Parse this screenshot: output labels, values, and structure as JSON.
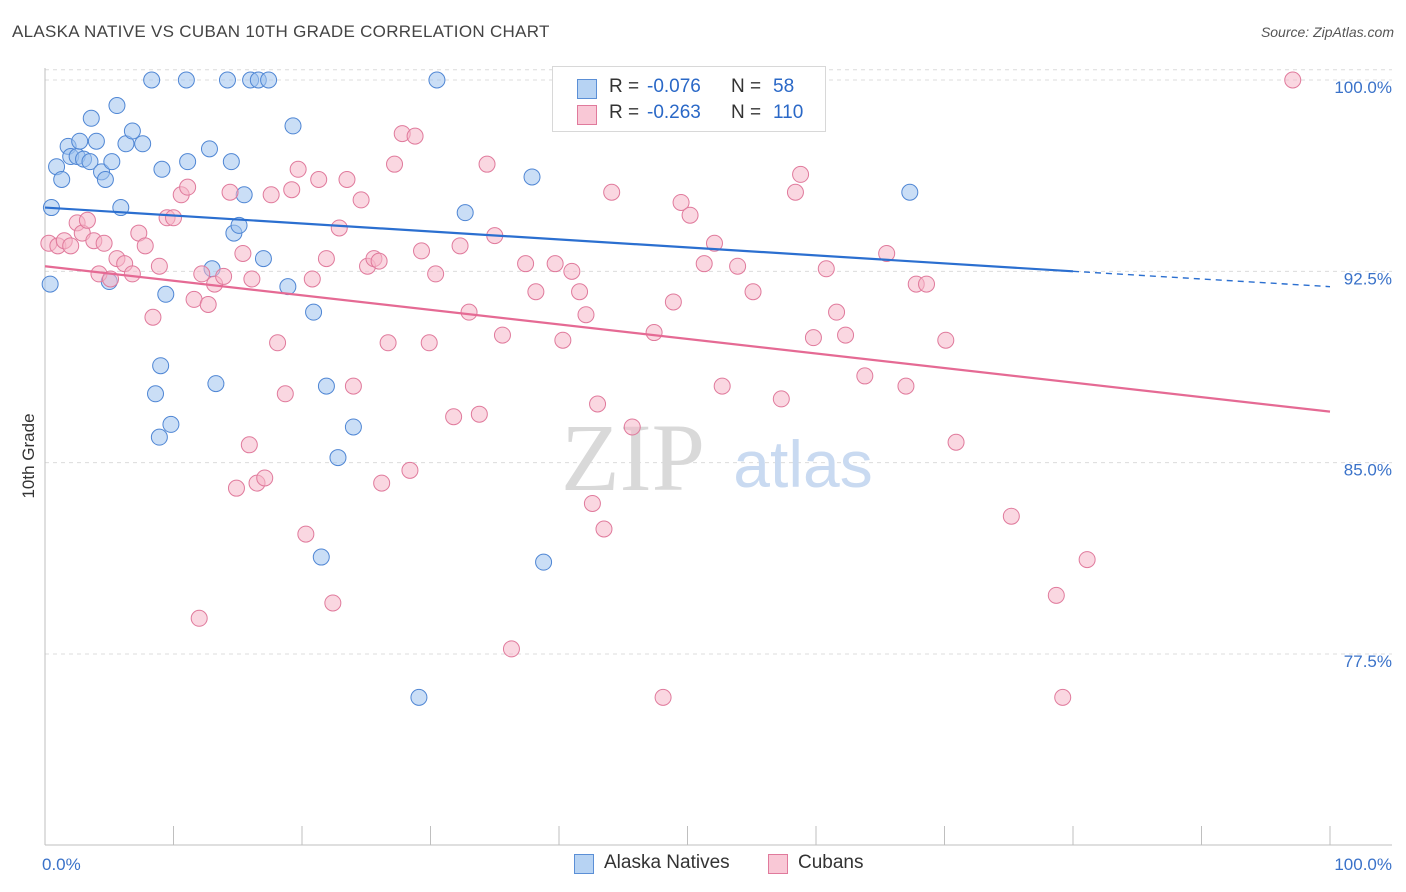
{
  "title": "ALASKA NATIVE VS CUBAN 10TH GRADE CORRELATION CHART",
  "source": "Source: ZipAtlas.com",
  "watermark": {
    "zip": "ZIP",
    "atlas": "atlas"
  },
  "legend": {
    "rows": [
      {
        "r_label": "R =",
        "r_value": "-0.076",
        "n_label": "N =",
        "n_value": "58",
        "color": "#9ec3ee",
        "edge": "#5b8fd6"
      },
      {
        "r_label": "R =",
        "r_value": "-0.263",
        "n_label": "N =",
        "n_value": "110",
        "color": "#f6b6c9",
        "edge": "#e07a9c"
      }
    ]
  },
  "chart_data": {
    "type": "scatter",
    "title": "ALASKA NATIVE VS CUBAN 10TH GRADE CORRELATION CHART",
    "xlabel": "",
    "ylabel": "10th Grade",
    "xlim": [
      0,
      100
    ],
    "ylim": [
      71,
      101
    ],
    "x_tick_labels": [
      "0.0%",
      "100.0%"
    ],
    "y_ticks": [
      77.5,
      85.0,
      92.5,
      100.0
    ],
    "y_tick_labels": [
      "77.5%",
      "85.0%",
      "92.5%",
      "100.0%"
    ],
    "grid": true,
    "legend_position": "top-center",
    "series": [
      {
        "name": "Alaska Natives",
        "color": "#9ec3ee",
        "edge": "#4f86d4",
        "trend_color": "#2b6fd0",
        "trend": {
          "x": [
            0,
            80
          ],
          "y": [
            95.0,
            92.5
          ],
          "dashed_to": [
            100,
            91.9
          ]
        },
        "points": [
          [
            0.4,
            92
          ],
          [
            0.5,
            95
          ],
          [
            0.9,
            96.6
          ],
          [
            1.3,
            96.1
          ],
          [
            1.8,
            97.4
          ],
          [
            2.0,
            97.0
          ],
          [
            2.5,
            97.0
          ],
          [
            2.7,
            97.6
          ],
          [
            3.0,
            96.9
          ],
          [
            3.5,
            96.8
          ],
          [
            3.6,
            98.5
          ],
          [
            4.0,
            97.6
          ],
          [
            4.4,
            96.4
          ],
          [
            4.7,
            96.1
          ],
          [
            5.2,
            96.8
          ],
          [
            5.6,
            99.0
          ],
          [
            5.9,
            95.0
          ],
          [
            6.3,
            97.5
          ],
          [
            6.8,
            98.0
          ],
          [
            7.6,
            97.5
          ],
          [
            8.3,
            100.0
          ],
          [
            8.6,
            87.7
          ],
          [
            8.9,
            86.0
          ],
          [
            9.1,
            96.5
          ],
          [
            9.4,
            91.6
          ],
          [
            9.8,
            86.5
          ],
          [
            11.0,
            100.0
          ],
          [
            11.1,
            96.8
          ],
          [
            12.8,
            97.3
          ],
          [
            13.0,
            92.6
          ],
          [
            13.3,
            88.1
          ],
          [
            14.2,
            100.0
          ],
          [
            14.5,
            96.8
          ],
          [
            14.7,
            94.0
          ],
          [
            15.1,
            94.3
          ],
          [
            15.5,
            95.5
          ],
          [
            16.0,
            100.0
          ],
          [
            16.6,
            100.0
          ],
          [
            17.0,
            93.0
          ],
          [
            17.4,
            100.0
          ],
          [
            18.9,
            91.9
          ],
          [
            19.3,
            98.2
          ],
          [
            20.9,
            90.9
          ],
          [
            21.5,
            81.3
          ],
          [
            21.9,
            88.0
          ],
          [
            22.8,
            85.2
          ],
          [
            24.0,
            86.4
          ],
          [
            29.1,
            75.8
          ],
          [
            30.5,
            100.0
          ],
          [
            32.7,
            94.8
          ],
          [
            37.9,
            96.2
          ],
          [
            38.8,
            81.1
          ],
          [
            41.5,
            100.0
          ],
          [
            42.5,
            100.0
          ],
          [
            45.2,
            100.0
          ],
          [
            67.3,
            95.6
          ],
          [
            5.0,
            92.1
          ],
          [
            9.0,
            88.8
          ]
        ]
      },
      {
        "name": "Cubans",
        "color": "#f6b6c9",
        "edge": "#e07a9c",
        "trend_color": "#e56a94",
        "trend": {
          "x": [
            0,
            100
          ],
          "y": [
            92.7,
            87.0
          ]
        },
        "points": [
          [
            0.3,
            93.6
          ],
          [
            1.0,
            93.5
          ],
          [
            1.5,
            93.7
          ],
          [
            2.0,
            93.5
          ],
          [
            2.5,
            94.4
          ],
          [
            2.9,
            94.0
          ],
          [
            3.3,
            94.5
          ],
          [
            3.8,
            93.7
          ],
          [
            4.2,
            92.4
          ],
          [
            4.6,
            93.6
          ],
          [
            5.1,
            92.2
          ],
          [
            5.6,
            93.0
          ],
          [
            6.2,
            92.8
          ],
          [
            6.8,
            92.4
          ],
          [
            7.3,
            94.0
          ],
          [
            7.8,
            93.5
          ],
          [
            8.4,
            90.7
          ],
          [
            8.9,
            92.7
          ],
          [
            9.5,
            94.6
          ],
          [
            10.0,
            94.6
          ],
          [
            10.6,
            95.5
          ],
          [
            11.1,
            95.8
          ],
          [
            11.6,
            91.4
          ],
          [
            12.2,
            92.4
          ],
          [
            12.7,
            91.2
          ],
          [
            13.2,
            92.0
          ],
          [
            13.9,
            92.3
          ],
          [
            14.4,
            95.6
          ],
          [
            14.9,
            84.0
          ],
          [
            15.4,
            93.2
          ],
          [
            15.9,
            85.7
          ],
          [
            16.5,
            84.2
          ],
          [
            17.1,
            84.4
          ],
          [
            17.6,
            95.5
          ],
          [
            18.1,
            89.7
          ],
          [
            18.7,
            87.7
          ],
          [
            19.2,
            95.7
          ],
          [
            19.7,
            96.5
          ],
          [
            20.3,
            82.2
          ],
          [
            20.8,
            92.2
          ],
          [
            21.3,
            96.1
          ],
          [
            21.9,
            93.0
          ],
          [
            22.4,
            79.5
          ],
          [
            22.9,
            94.2
          ],
          [
            23.5,
            96.1
          ],
          [
            24.0,
            88.0
          ],
          [
            24.6,
            95.3
          ],
          [
            25.1,
            92.7
          ],
          [
            25.6,
            93.0
          ],
          [
            26.2,
            84.2
          ],
          [
            26.7,
            89.7
          ],
          [
            27.2,
            96.7
          ],
          [
            27.8,
            97.9
          ],
          [
            28.4,
            84.7
          ],
          [
            28.8,
            97.8
          ],
          [
            29.3,
            93.3
          ],
          [
            29.9,
            89.7
          ],
          [
            30.4,
            92.4
          ],
          [
            31.8,
            86.8
          ],
          [
            32.3,
            93.5
          ],
          [
            33.0,
            90.9
          ],
          [
            33.8,
            86.9
          ],
          [
            34.4,
            96.7
          ],
          [
            35.0,
            93.9
          ],
          [
            35.6,
            90.0
          ],
          [
            36.3,
            77.7
          ],
          [
            37.4,
            92.8
          ],
          [
            38.2,
            91.7
          ],
          [
            39.7,
            92.8
          ],
          [
            40.3,
            89.8
          ],
          [
            41.0,
            92.5
          ],
          [
            41.6,
            91.7
          ],
          [
            42.1,
            90.8
          ],
          [
            42.6,
            83.4
          ],
          [
            43.0,
            87.3
          ],
          [
            43.5,
            82.4
          ],
          [
            44.1,
            95.6
          ],
          [
            45.7,
            86.4
          ],
          [
            47.4,
            90.1
          ],
          [
            48.1,
            75.8
          ],
          [
            48.9,
            91.3
          ],
          [
            49.5,
            95.2
          ],
          [
            50.2,
            94.7
          ],
          [
            51.3,
            92.8
          ],
          [
            52.1,
            93.6
          ],
          [
            52.7,
            88.0
          ],
          [
            53.9,
            92.7
          ],
          [
            55.1,
            91.7
          ],
          [
            57.3,
            87.5
          ],
          [
            58.4,
            95.6
          ],
          [
            58.8,
            96.3
          ],
          [
            59.8,
            89.9
          ],
          [
            60.8,
            92.6
          ],
          [
            61.6,
            90.9
          ],
          [
            62.3,
            90.0
          ],
          [
            63.8,
            88.4
          ],
          [
            65.5,
            93.2
          ],
          [
            67.0,
            88.0
          ],
          [
            67.8,
            92.0
          ],
          [
            68.6,
            92.0
          ],
          [
            70.1,
            89.8
          ],
          [
            70.9,
            85.8
          ],
          [
            75.2,
            82.9
          ],
          [
            78.7,
            79.8
          ],
          [
            79.2,
            75.8
          ],
          [
            81.1,
            81.2
          ],
          [
            97.1,
            100.0
          ],
          [
            26.0,
            92.9
          ],
          [
            12.0,
            78.9
          ],
          [
            16.1,
            92.2
          ]
        ]
      }
    ]
  }
}
